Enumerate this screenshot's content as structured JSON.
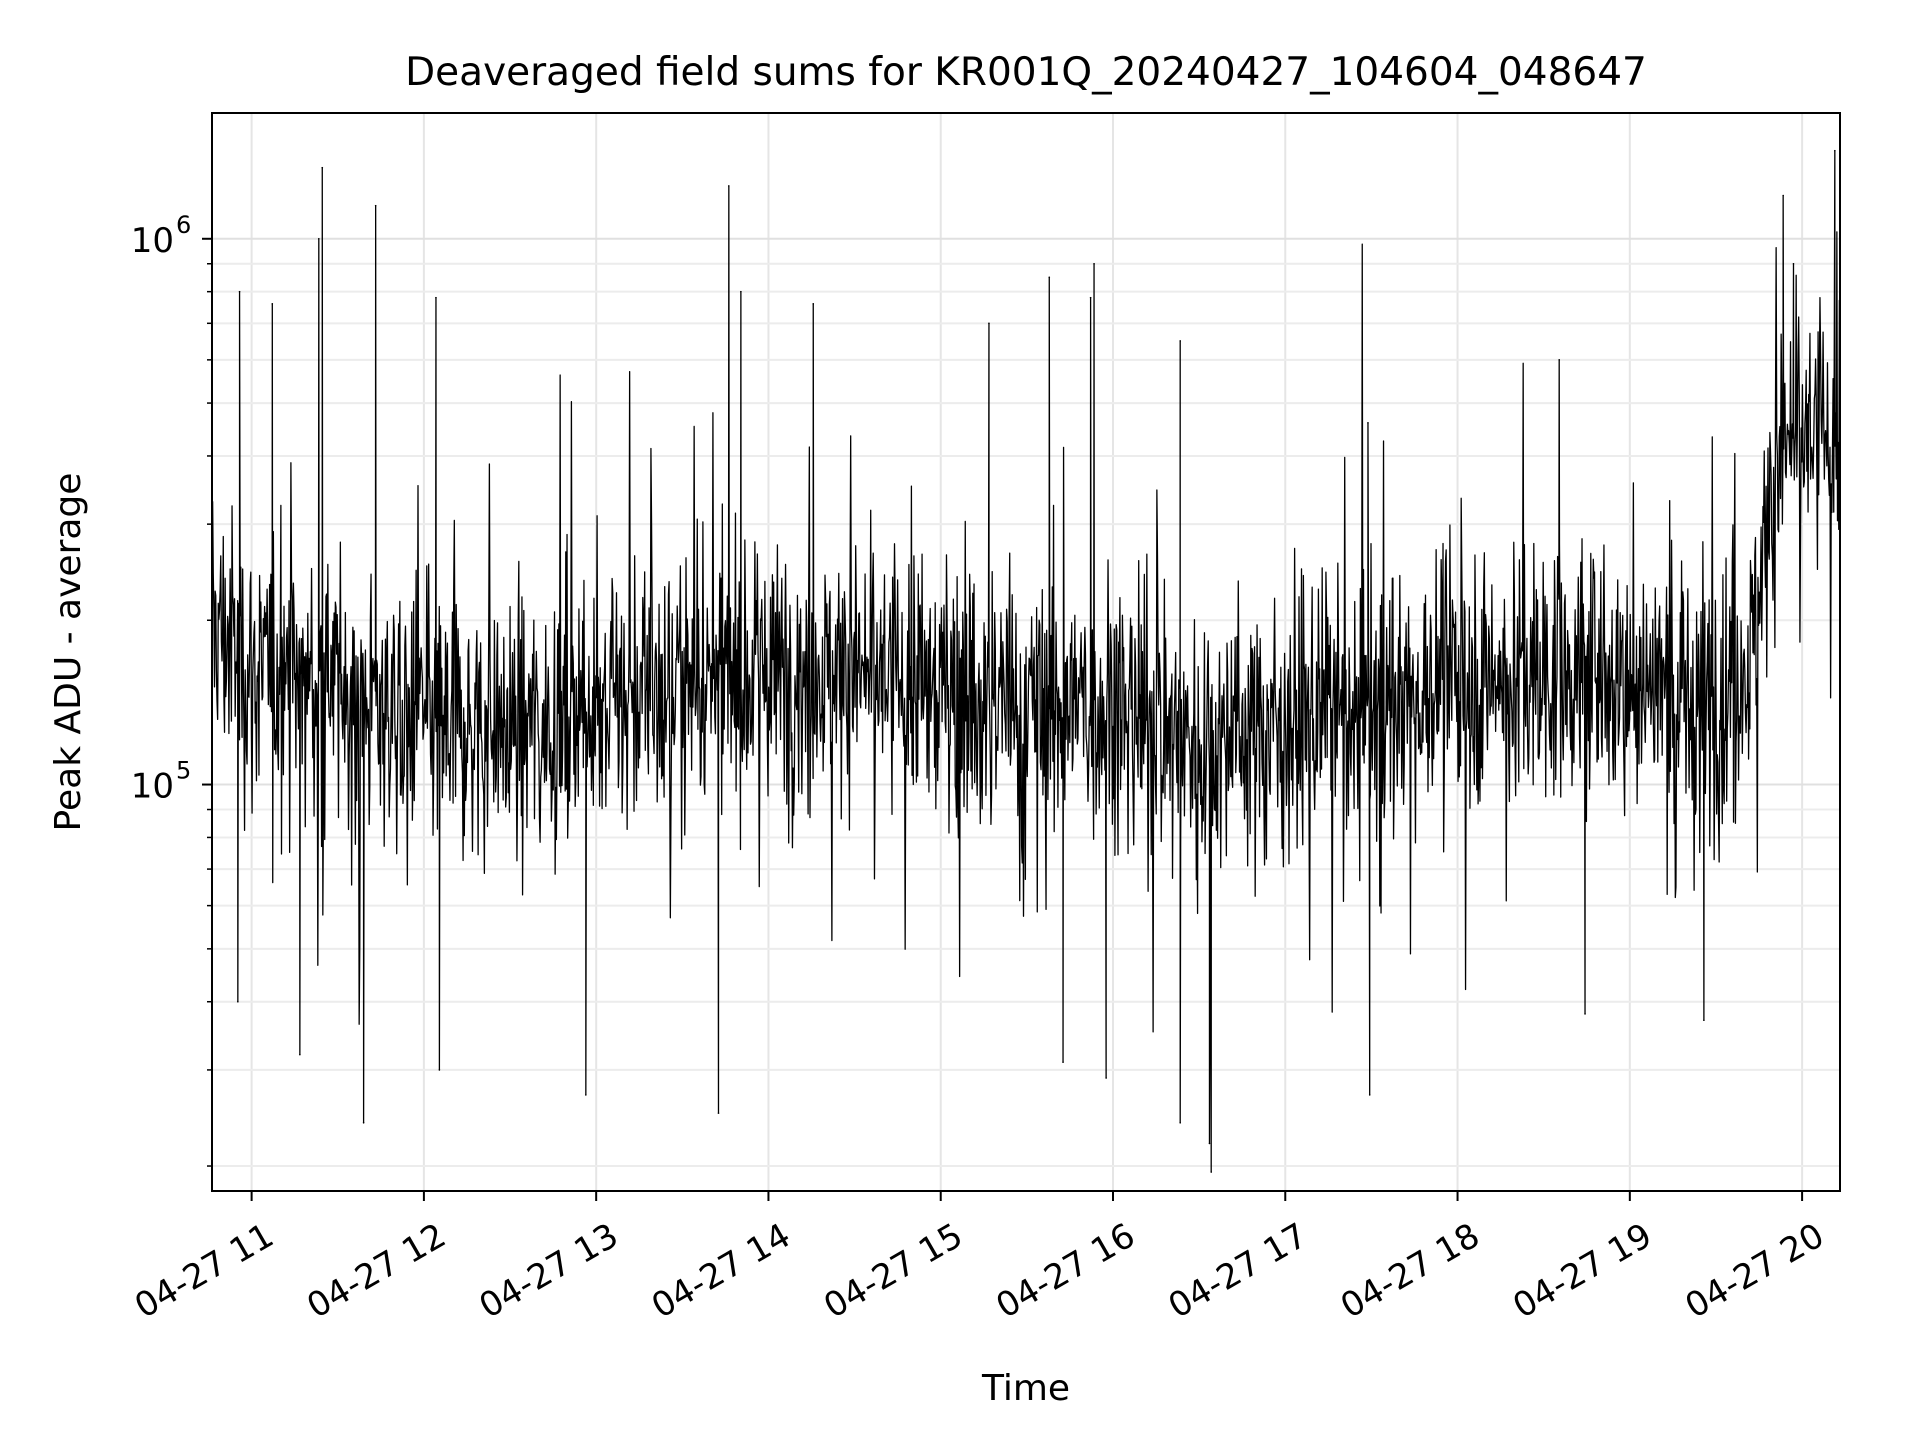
{
  "chart_data": {
    "type": "line",
    "title": "Deaveraged field sums for KR001Q_20240427_104604_048647",
    "xlabel": "Time",
    "ylabel": "Peak ADU - average",
    "yscale": "log",
    "ylim": [
      18000,
      1700000
    ],
    "xlim_hours": [
      10.77,
      20.22
    ],
    "grid": true,
    "xticks": [
      {
        "hour": 11,
        "label": "04-27 11"
      },
      {
        "hour": 12,
        "label": "04-27 12"
      },
      {
        "hour": 13,
        "label": "04-27 13"
      },
      {
        "hour": 14,
        "label": "04-27 14"
      },
      {
        "hour": 15,
        "label": "04-27 15"
      },
      {
        "hour": 16,
        "label": "04-27 16"
      },
      {
        "hour": 17,
        "label": "04-27 17"
      },
      {
        "hour": 18,
        "label": "04-27 18"
      },
      {
        "hour": 19,
        "label": "04-27 19"
      },
      {
        "hour": 20,
        "label": "04-27 20"
      }
    ],
    "yticks": [
      {
        "value": 100000,
        "base": "10",
        "exp": "5"
      },
      {
        "value": 1000000,
        "base": "10",
        "exp": "6"
      }
    ],
    "series": [
      {
        "name": "deaveraged field sum",
        "color": "#000000",
        "baseline": [
          [
            10.77,
            200000
          ],
          [
            11.0,
            160000
          ],
          [
            11.5,
            150000
          ],
          [
            12.0,
            130000
          ],
          [
            12.5,
            125000
          ],
          [
            13.0,
            140000
          ],
          [
            13.5,
            150000
          ],
          [
            14.0,
            160000
          ],
          [
            14.5,
            160000
          ],
          [
            15.0,
            150000
          ],
          [
            15.5,
            140000
          ],
          [
            16.0,
            140000
          ],
          [
            16.5,
            120000
          ],
          [
            17.0,
            130000
          ],
          [
            17.5,
            140000
          ],
          [
            18.0,
            155000
          ],
          [
            18.5,
            160000
          ],
          [
            19.0,
            160000
          ],
          [
            19.5,
            140000
          ],
          [
            19.7,
            170000
          ],
          [
            19.8,
            300000
          ],
          [
            19.9,
            420000
          ],
          [
            20.22,
            450000
          ]
        ],
        "spread_dex": 0.12,
        "peaks": [
          [
            10.93,
            800000
          ],
          [
            11.12,
            760000
          ],
          [
            11.39,
            1000000
          ],
          [
            11.41,
            1350000
          ],
          [
            11.72,
            1150000
          ],
          [
            12.07,
            780000
          ],
          [
            13.77,
            1250000
          ],
          [
            13.84,
            800000
          ],
          [
            14.26,
            760000
          ],
          [
            15.28,
            700000
          ],
          [
            15.63,
            850000
          ],
          [
            15.87,
            780000
          ],
          [
            15.89,
            900000
          ],
          [
            16.39,
            650000
          ],
          [
            17.48,
            460000
          ],
          [
            18.59,
            600000
          ],
          [
            19.89,
            1200000
          ],
          [
            19.95,
            900000
          ],
          [
            20.19,
            1450000
          ]
        ],
        "dips": [
          [
            10.92,
            40000
          ],
          [
            11.28,
            32000
          ],
          [
            11.65,
            24000
          ],
          [
            12.09,
            30000
          ],
          [
            12.94,
            27000
          ],
          [
            13.71,
            25000
          ],
          [
            15.71,
            31000
          ],
          [
            15.96,
            29000
          ],
          [
            16.39,
            24000
          ],
          [
            16.56,
            22000
          ],
          [
            16.57,
            19500
          ],
          [
            17.49,
            27000
          ],
          [
            18.74,
            38000
          ],
          [
            19.43,
            37000
          ]
        ]
      }
    ]
  }
}
